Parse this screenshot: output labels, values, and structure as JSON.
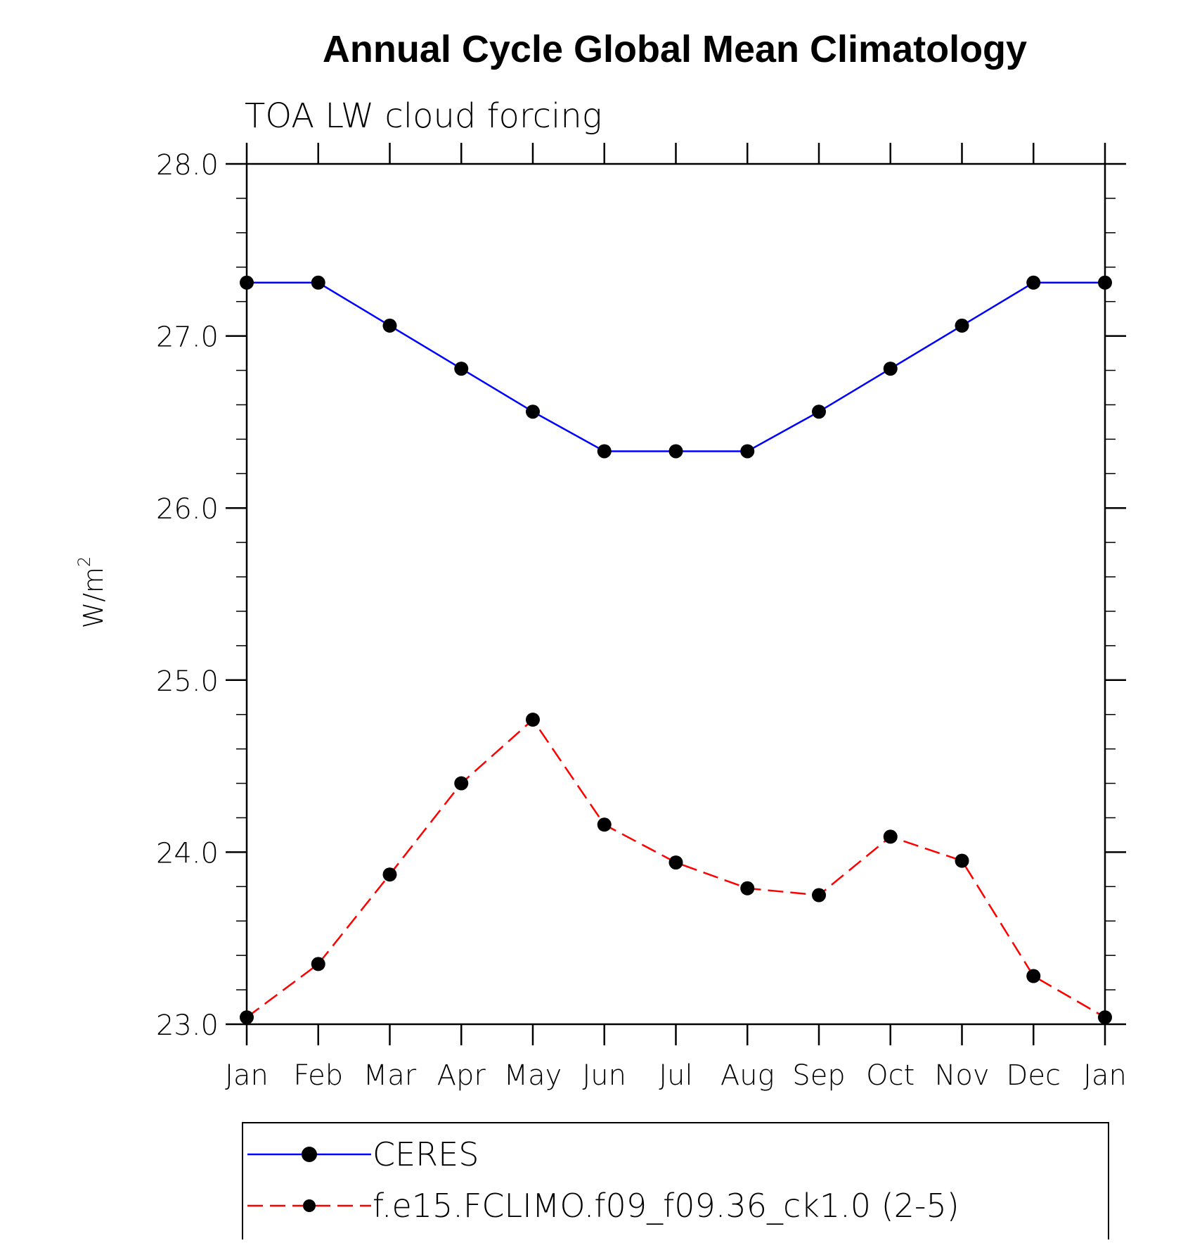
{
  "chart_data": {
    "type": "line",
    "title": "Annual Cycle Global Mean Climatology",
    "subtitle": "TOA LW cloud forcing",
    "ylabel": "W/m²",
    "ylabel_base": "W/m",
    "ylabel_sup": "2",
    "xlabel": "",
    "ylim": [
      23.0,
      28.0
    ],
    "yticks": [
      23.0,
      24.0,
      25.0,
      26.0,
      27.0,
      28.0
    ],
    "ytick_labels": [
      "23.0",
      "24.0",
      "25.0",
      "26.0",
      "27.0",
      "28.0"
    ],
    "y_minor_step": 0.2,
    "categories": [
      "Jan",
      "Feb",
      "Mar",
      "Apr",
      "May",
      "Jun",
      "Jul",
      "Aug",
      "Sep",
      "Oct",
      "Nov",
      "Dec",
      "Jan"
    ],
    "grid": false,
    "legend_position": "bottom",
    "series": [
      {
        "name": "CERES",
        "color": "#0000ff",
        "line_style": "solid",
        "marker": "filled-circle",
        "values": [
          27.31,
          27.31,
          27.06,
          26.81,
          26.56,
          26.33,
          26.33,
          26.33,
          26.56,
          26.81,
          27.06,
          27.31,
          27.31
        ]
      },
      {
        "name": "f.e15.FCLIMO.f09_f09.36_ck1.0 (2-5)",
        "color": "#ff0000",
        "line_style": "dashed",
        "marker": "filled-circle",
        "values": [
          23.04,
          23.35,
          23.87,
          24.4,
          24.77,
          24.16,
          23.94,
          23.79,
          23.75,
          24.09,
          23.95,
          23.28,
          23.04
        ]
      }
    ]
  }
}
